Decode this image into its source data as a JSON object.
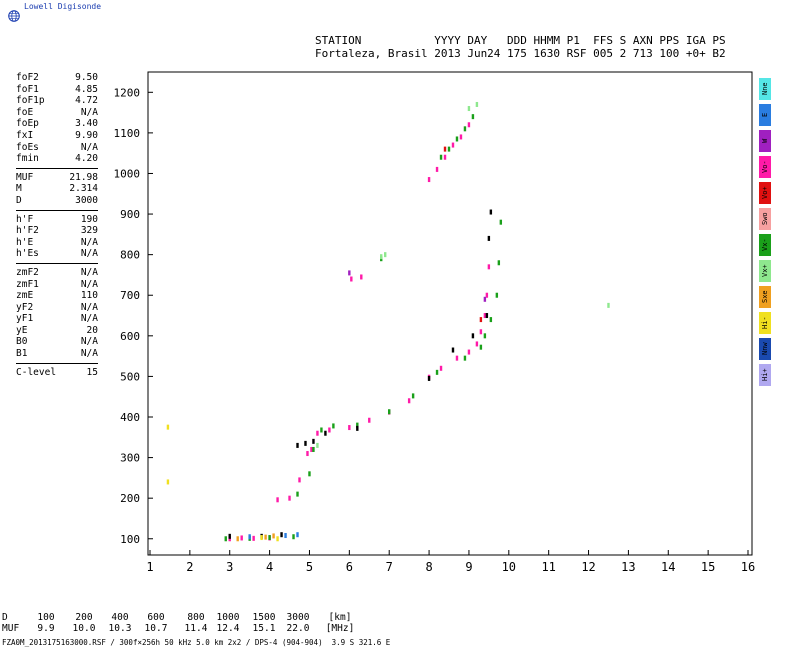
{
  "brand": "Lowell Digisonde",
  "header": {
    "line1": "STATION           YYYY DAY   DDD HHMM P1  FFS S AXN PPS IGA PS",
    "line2": "Fortaleza, Brasil 2013 Jun24 175 1630 RSF 005 2 713 100 +0+ B2"
  },
  "params": {
    "group1": [
      {
        "label": "foF2",
        "value": "9.50"
      },
      {
        "label": "foF1",
        "value": "4.85"
      },
      {
        "label": "foF1p",
        "value": "4.72"
      },
      {
        "label": "foE",
        "value": "N/A"
      },
      {
        "label": "foEp",
        "value": "3.40"
      },
      {
        "label": "fxI",
        "value": "9.90"
      },
      {
        "label": "foEs",
        "value": "N/A"
      },
      {
        "label": "fmin",
        "value": "4.20"
      }
    ],
    "group2": [
      {
        "label": "MUF",
        "value": "21.98"
      },
      {
        "label": "M",
        "value": "2.314"
      },
      {
        "label": "D",
        "value": "3000"
      }
    ],
    "group3": [
      {
        "label": "h'F",
        "value": "190"
      },
      {
        "label": "h'F2",
        "value": "329"
      },
      {
        "label": "h'E",
        "value": "N/A"
      },
      {
        "label": "h'Es",
        "value": "N/A"
      }
    ],
    "group4": [
      {
        "label": "zmF2",
        "value": "N/A"
      },
      {
        "label": "zmF1",
        "value": "N/A"
      },
      {
        "label": "zmE",
        "value": "110"
      },
      {
        "label": "yF2",
        "value": "N/A"
      },
      {
        "label": "yF1",
        "value": "N/A"
      },
      {
        "label": "yE",
        "value": "20"
      },
      {
        "label": "B0",
        "value": "N/A"
      },
      {
        "label": "B1",
        "value": "N/A"
      }
    ],
    "group5": [
      {
        "label": "C-level",
        "value": "15"
      }
    ]
  },
  "legend": [
    {
      "label": "Nne",
      "color": "#55e6e6"
    },
    {
      "label": "E",
      "color": "#2a7de0"
    },
    {
      "label": "W",
      "color": "#a020c0"
    },
    {
      "label": "Vo-",
      "color": "#ff1aa8"
    },
    {
      "label": "Vo+",
      "color": "#e01010"
    },
    {
      "label": "Swo",
      "color": "#f7a0a0"
    },
    {
      "label": "Vx-",
      "color": "#1aa01a"
    },
    {
      "label": "Vx+",
      "color": "#8ee88e"
    },
    {
      "label": "Sxe",
      "color": "#f0a020"
    },
    {
      "label": "Hi-",
      "color": "#f0e020"
    },
    {
      "label": "Nnw",
      "color": "#1a4ab0"
    },
    {
      "label": "Hi+",
      "color": "#b0a8f0"
    }
  ],
  "muf_table": {
    "d_label": "D",
    "muf_label": "MUF",
    "distances": [
      "100",
      "200",
      "400",
      "600",
      "800",
      "1000",
      "1500",
      "3000"
    ],
    "mufs": [
      "9.9",
      "10.0",
      "10.3",
      "10.7",
      "11.4",
      "12.4",
      "15.1",
      "22.0"
    ],
    "d_unit": "[km]",
    "muf_unit": "[MHz]"
  },
  "footer": "FZA0M_2013175163000.RSF / 300f×256h 50 kHz 5.0 km 2x2 / DPS-4 (904-904)  3.9 S 321.6 E",
  "chart_data": {
    "type": "scatter",
    "title": "",
    "xlabel": "",
    "ylabel": "",
    "xlim": [
      0.95,
      16.1
    ],
    "ylim": [
      60,
      1250
    ],
    "xticks": [
      1,
      2,
      3,
      4,
      5,
      6,
      7,
      8,
      9,
      10,
      11,
      12,
      13,
      14,
      15,
      16
    ],
    "yticks": [
      100,
      200,
      300,
      400,
      500,
      600,
      700,
      800,
      900,
      1000,
      1100,
      1200
    ],
    "grid": false,
    "series": [
      {
        "color": "#ff1aa8",
        "points": [
          [
            3.0,
            100
          ],
          [
            3.3,
            102
          ],
          [
            3.6,
            101
          ],
          [
            4.0,
            102
          ],
          [
            4.2,
            196
          ],
          [
            4.5,
            200
          ],
          [
            4.75,
            245
          ],
          [
            4.95,
            310
          ],
          [
            5.05,
            320
          ],
          [
            5.2,
            360
          ],
          [
            5.5,
            368
          ],
          [
            6.0,
            374
          ],
          [
            6.5,
            392
          ],
          [
            7.0,
            412
          ],
          [
            7.5,
            440
          ],
          [
            8.0,
            498
          ],
          [
            8.3,
            520
          ],
          [
            8.7,
            545
          ],
          [
            9.0,
            560
          ],
          [
            9.2,
            580
          ],
          [
            9.3,
            610
          ],
          [
            9.4,
            650
          ],
          [
            9.45,
            700
          ],
          [
            9.5,
            770
          ],
          [
            6.05,
            740
          ],
          [
            6.3,
            745
          ],
          [
            8.0,
            985
          ],
          [
            8.2,
            1010
          ],
          [
            8.4,
            1040
          ],
          [
            8.6,
            1070
          ],
          [
            8.8,
            1090
          ],
          [
            9.0,
            1120
          ]
        ]
      },
      {
        "color": "#1aa01a",
        "points": [
          [
            2.9,
            100
          ],
          [
            3.5,
            101
          ],
          [
            4.0,
            103
          ],
          [
            4.6,
            105
          ],
          [
            4.7,
            210
          ],
          [
            5.0,
            260
          ],
          [
            5.1,
            320
          ],
          [
            5.3,
            368
          ],
          [
            5.6,
            378
          ],
          [
            6.2,
            380
          ],
          [
            7.0,
            413
          ],
          [
            7.6,
            452
          ],
          [
            8.2,
            510
          ],
          [
            8.9,
            545
          ],
          [
            9.3,
            572
          ],
          [
            9.4,
            600
          ],
          [
            9.55,
            640
          ],
          [
            9.7,
            700
          ],
          [
            9.75,
            780
          ],
          [
            9.8,
            880
          ],
          [
            8.3,
            1040
          ],
          [
            8.5,
            1060
          ],
          [
            8.7,
            1085
          ],
          [
            8.9,
            1110
          ],
          [
            9.1,
            1140
          ],
          [
            6.8,
            790
          ]
        ]
      },
      {
        "color": "#000000",
        "points": [
          [
            4.7,
            330
          ],
          [
            4.9,
            335
          ],
          [
            5.1,
            340
          ],
          [
            5.4,
            360
          ],
          [
            6.2,
            372
          ],
          [
            8.0,
            495
          ],
          [
            8.6,
            565
          ],
          [
            9.1,
            600
          ],
          [
            9.45,
            650
          ],
          [
            9.5,
            840
          ],
          [
            9.55,
            905
          ],
          [
            4.3,
            110
          ],
          [
            3.0,
            106
          ],
          [
            3.8,
            106
          ]
        ]
      },
      {
        "color": "#8ee88e",
        "points": [
          [
            6.8,
            795
          ],
          [
            6.9,
            800
          ],
          [
            9.0,
            1160
          ],
          [
            9.2,
            1170
          ],
          [
            12.5,
            675
          ],
          [
            5.2,
            330
          ]
        ]
      },
      {
        "color": "#f0e020",
        "points": [
          [
            1.45,
            240
          ],
          [
            1.45,
            375
          ],
          [
            3.8,
            103
          ],
          [
            4.2,
            100
          ]
        ]
      },
      {
        "color": "#f0a020",
        "points": [
          [
            3.2,
            100
          ],
          [
            3.9,
            104
          ],
          [
            4.1,
            107
          ]
        ]
      },
      {
        "color": "#2a7de0",
        "points": [
          [
            3.5,
            105
          ],
          [
            4.4,
            108
          ],
          [
            4.7,
            110
          ]
        ]
      },
      {
        "color": "#a020c0",
        "points": [
          [
            6.0,
            755
          ],
          [
            9.4,
            690
          ]
        ]
      },
      {
        "color": "#e01010",
        "points": [
          [
            9.3,
            640
          ],
          [
            8.4,
            1060
          ]
        ]
      }
    ]
  }
}
